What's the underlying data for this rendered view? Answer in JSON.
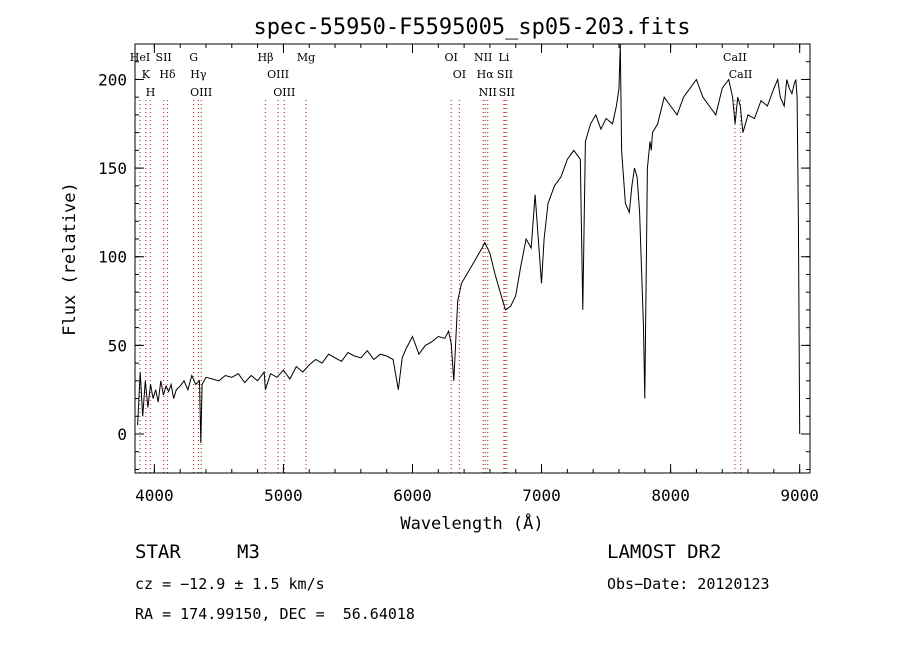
{
  "chart_data": {
    "type": "line",
    "title": "spec-55950-F5595005_sp05-203.fits",
    "xlabel": "Wavelength (Å)",
    "ylabel": "Flux (relative)",
    "xlim": [
      3850,
      9080
    ],
    "ylim": [
      -22,
      220
    ],
    "xticks": [
      4000,
      5000,
      6000,
      7000,
      8000,
      9000
    ],
    "yticks": [
      0,
      50,
      100,
      150,
      200
    ],
    "grid": false,
    "series": [
      {
        "x": [
          3870,
          3890,
          3910,
          3930,
          3950,
          3970,
          3990,
          4010,
          4030,
          4050,
          4070,
          4090,
          4110,
          4130,
          4150,
          4170,
          4200,
          4230,
          4260,
          4290,
          4320,
          4350,
          4360,
          4370,
          4400,
          4450,
          4500,
          4550,
          4600,
          4650,
          4700,
          4750,
          4800,
          4850,
          4860,
          4900,
          4950,
          5000,
          5050,
          5100,
          5150,
          5200,
          5250,
          5300,
          5350,
          5400,
          5450,
          5500,
          5550,
          5600,
          5650,
          5700,
          5750,
          5800,
          5850,
          5890,
          5920,
          5950,
          6000,
          6050,
          6100,
          6150,
          6200,
          6250,
          6280,
          6300,
          6320,
          6350,
          6380,
          6420,
          6460,
          6500,
          6540,
          6560,
          6600,
          6640,
          6680,
          6700,
          6720,
          6760,
          6800,
          6840,
          6880,
          6920,
          6950,
          7000,
          7020,
          7050,
          7100,
          7150,
          7200,
          7250,
          7300,
          7320,
          7340,
          7360,
          7380,
          7420,
          7460,
          7500,
          7550,
          7580,
          7600,
          7610,
          7620,
          7650,
          7680,
          7700,
          7720,
          7740,
          7760,
          7790,
          7800,
          7820,
          7840,
          7850,
          7860,
          7900,
          7950,
          8000,
          8050,
          8100,
          8150,
          8200,
          8250,
          8300,
          8350,
          8400,
          8450,
          8480,
          8500,
          8520,
          8540,
          8560,
          8600,
          8650,
          8700,
          8750,
          8800,
          8830,
          8850,
          8880,
          8900,
          8920,
          8940,
          8960,
          8970,
          8980,
          8990,
          9000
        ],
        "y": [
          5,
          35,
          10,
          30,
          15,
          28,
          20,
          25,
          18,
          30,
          22,
          27,
          24,
          28,
          20,
          25,
          27,
          30,
          25,
          33,
          28,
          30,
          -5,
          28,
          32,
          31,
          30,
          33,
          32,
          34,
          29,
          33,
          30,
          35,
          25,
          34,
          32,
          36,
          31,
          38,
          35,
          39,
          42,
          40,
          45,
          43,
          41,
          46,
          44,
          43,
          47,
          42,
          45,
          44,
          42,
          25,
          43,
          48,
          55,
          45,
          50,
          52,
          55,
          54,
          58,
          51,
          30,
          75,
          85,
          90,
          95,
          100,
          105,
          108,
          102,
          90,
          80,
          75,
          70,
          72,
          78,
          95,
          110,
          105,
          135,
          85,
          110,
          130,
          140,
          145,
          155,
          160,
          155,
          70,
          165,
          170,
          175,
          180,
          172,
          178,
          175,
          185,
          195,
          220,
          160,
          130,
          125,
          140,
          150,
          145,
          125,
          60,
          20,
          150,
          165,
          160,
          170,
          175,
          190,
          185,
          180,
          190,
          195,
          200,
          190,
          185,
          180,
          195,
          200,
          190,
          175,
          190,
          185,
          170,
          180,
          178,
          188,
          185,
          195,
          200,
          190,
          185,
          200,
          195,
          192,
          198,
          200,
          190,
          120,
          0
        ]
      }
    ],
    "lines": [
      {
        "x": 3889,
        "labels": [
          "HeI"
        ]
      },
      {
        "x": 3934,
        "labels": [
          "K"
        ]
      },
      {
        "x": 3970,
        "labels": [
          "H"
        ]
      },
      {
        "x": 4072,
        "labels": [
          "SII"
        ]
      },
      {
        "x": 4102,
        "labels": [
          "Hδ"
        ]
      },
      {
        "x": 4304,
        "labels": [
          "G"
        ]
      },
      {
        "x": 4341,
        "labels": [
          "Hγ"
        ]
      },
      {
        "x": 4363,
        "labels": [
          "OIII"
        ]
      },
      {
        "x": 4861,
        "labels": [
          "Hβ"
        ]
      },
      {
        "x": 4959,
        "labels": [
          "OIII"
        ]
      },
      {
        "x": 5007,
        "labels": [
          "OIII"
        ]
      },
      {
        "x": 5175,
        "labels": [
          "Mg"
        ]
      },
      {
        "x": 6300,
        "labels": [
          "OI"
        ]
      },
      {
        "x": 6364,
        "labels": [
          "OI"
        ]
      },
      {
        "x": 6548,
        "labels": [
          "NII"
        ]
      },
      {
        "x": 6563,
        "labels": [
          "Hα"
        ]
      },
      {
        "x": 6583,
        "labels": [
          "NII"
        ]
      },
      {
        "x": 6708,
        "labels": [
          "Li"
        ]
      },
      {
        "x": 6717,
        "labels": [
          "SII"
        ]
      },
      {
        "x": 6731,
        "labels": [
          "SII"
        ]
      },
      {
        "x": 8498,
        "labels": [
          "CaII"
        ]
      },
      {
        "x": 8542,
        "labels": [
          "CaII"
        ]
      }
    ]
  },
  "info": {
    "obj_type": "STAR",
    "obj_class": "M3",
    "survey": "LAMOST DR2",
    "cz": "cz = −12.9 ± 1.5 km/s",
    "obs_date": "Obs−Date: 20120123",
    "radec": "RA = 174.99150, DEC =  56.64018"
  },
  "colors": {
    "line": "#000000",
    "marker": "#c0392b",
    "axis": "#000000"
  }
}
